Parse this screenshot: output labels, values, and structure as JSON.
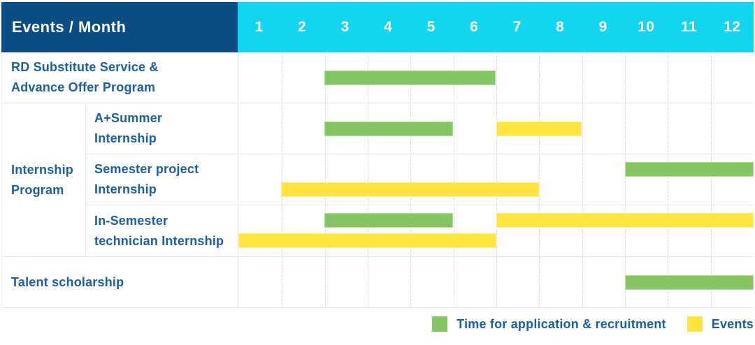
{
  "header": {
    "title": "Events / Month",
    "months": [
      "1",
      "2",
      "3",
      "4",
      "5",
      "6",
      "7",
      "8",
      "9",
      "10",
      "11",
      "12"
    ]
  },
  "colors": {
    "header_bg": "#0d4d85",
    "months_bg": "#12d5f0",
    "label_text": "#1d5da5",
    "bar_green": "#85c563",
    "bar_yellow": "#ffe440",
    "gridline": "#d9d9d9"
  },
  "chart_data": {
    "type": "gantt",
    "title": "Events / Month",
    "x_axis": {
      "unit": "month",
      "range": [
        1,
        12
      ],
      "ticks": [
        "1",
        "2",
        "3",
        "4",
        "5",
        "6",
        "7",
        "8",
        "9",
        "10",
        "11",
        "12"
      ]
    },
    "group_label_lines": [
      "Internship",
      "Program"
    ],
    "rows": [
      {
        "group": null,
        "label": "RD Substitute Service & Advance Offer Program",
        "label_lines": [
          "RD Substitute Service &",
          "Advance Offer Program"
        ],
        "bars": [
          {
            "color": "green",
            "start": 3,
            "end": 6,
            "lane": "single"
          }
        ]
      },
      {
        "group": "Internship Program",
        "label": "A+Summer Internship",
        "label_lines": [
          "A+Summer",
          "Internship"
        ],
        "bars": [
          {
            "color": "green",
            "start": 3,
            "end": 5,
            "lane": "single"
          },
          {
            "color": "yellow",
            "start": 7,
            "end": 8,
            "lane": "single"
          }
        ]
      },
      {
        "group": "Internship Program",
        "label": "Semester project Internship",
        "label_lines": [
          "Semester project",
          "Internship"
        ],
        "bars": [
          {
            "color": "green",
            "start": 10,
            "end": 12,
            "lane": "top"
          },
          {
            "color": "yellow",
            "start": 2,
            "end": 7,
            "lane": "bottom"
          }
        ]
      },
      {
        "group": "Internship Program",
        "label": "In-Semester technician Internship",
        "label_lines": [
          "In-Semester",
          "technician Internship"
        ],
        "bars": [
          {
            "color": "green",
            "start": 3,
            "end": 5,
            "lane": "top"
          },
          {
            "color": "yellow",
            "start": 7,
            "end": 12,
            "lane": "top"
          },
          {
            "color": "yellow",
            "start": 1,
            "end": 6,
            "lane": "bottom"
          }
        ]
      },
      {
        "group": null,
        "label": "Talent scholarship",
        "label_lines": [
          "Talent scholarship"
        ],
        "bars": [
          {
            "color": "green",
            "start": 10,
            "end": 12,
            "lane": "single"
          }
        ]
      }
    ]
  },
  "legend": {
    "items": [
      {
        "color": "green",
        "label": "Time for application & recruitment"
      },
      {
        "color": "yellow",
        "label": "Events"
      }
    ]
  }
}
